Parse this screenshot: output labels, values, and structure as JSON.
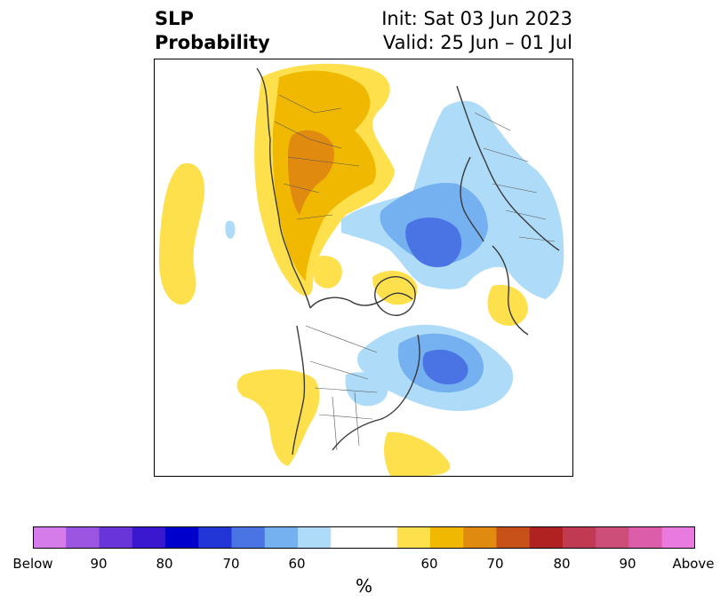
{
  "title": {
    "left_line1": "SLP",
    "left_line2": "Probability",
    "right_line1": "Init: Sat 03 Jun 2023",
    "right_line2": "Valid: 25 Jun – 01 Jul"
  },
  "colorbar": {
    "unit": "%",
    "labels": [
      "Below",
      "90",
      "80",
      "70",
      "60",
      "60",
      "70",
      "80",
      "90",
      "Above"
    ],
    "below_colors": [
      "#d57bea",
      "#9c55e0",
      "#6a35d8",
      "#3a18cf",
      "#0000cc",
      "#2236d8",
      "#4a74e4",
      "#75b0f0",
      "#aedcf8"
    ],
    "neutral_color": "#ffffff",
    "above_colors": [
      "#fde04c",
      "#f0b800",
      "#e08a10",
      "#c75118",
      "#b02222",
      "#c03a52",
      "#ce4e7a",
      "#dc5eaa",
      "#e87ae0"
    ]
  }
}
